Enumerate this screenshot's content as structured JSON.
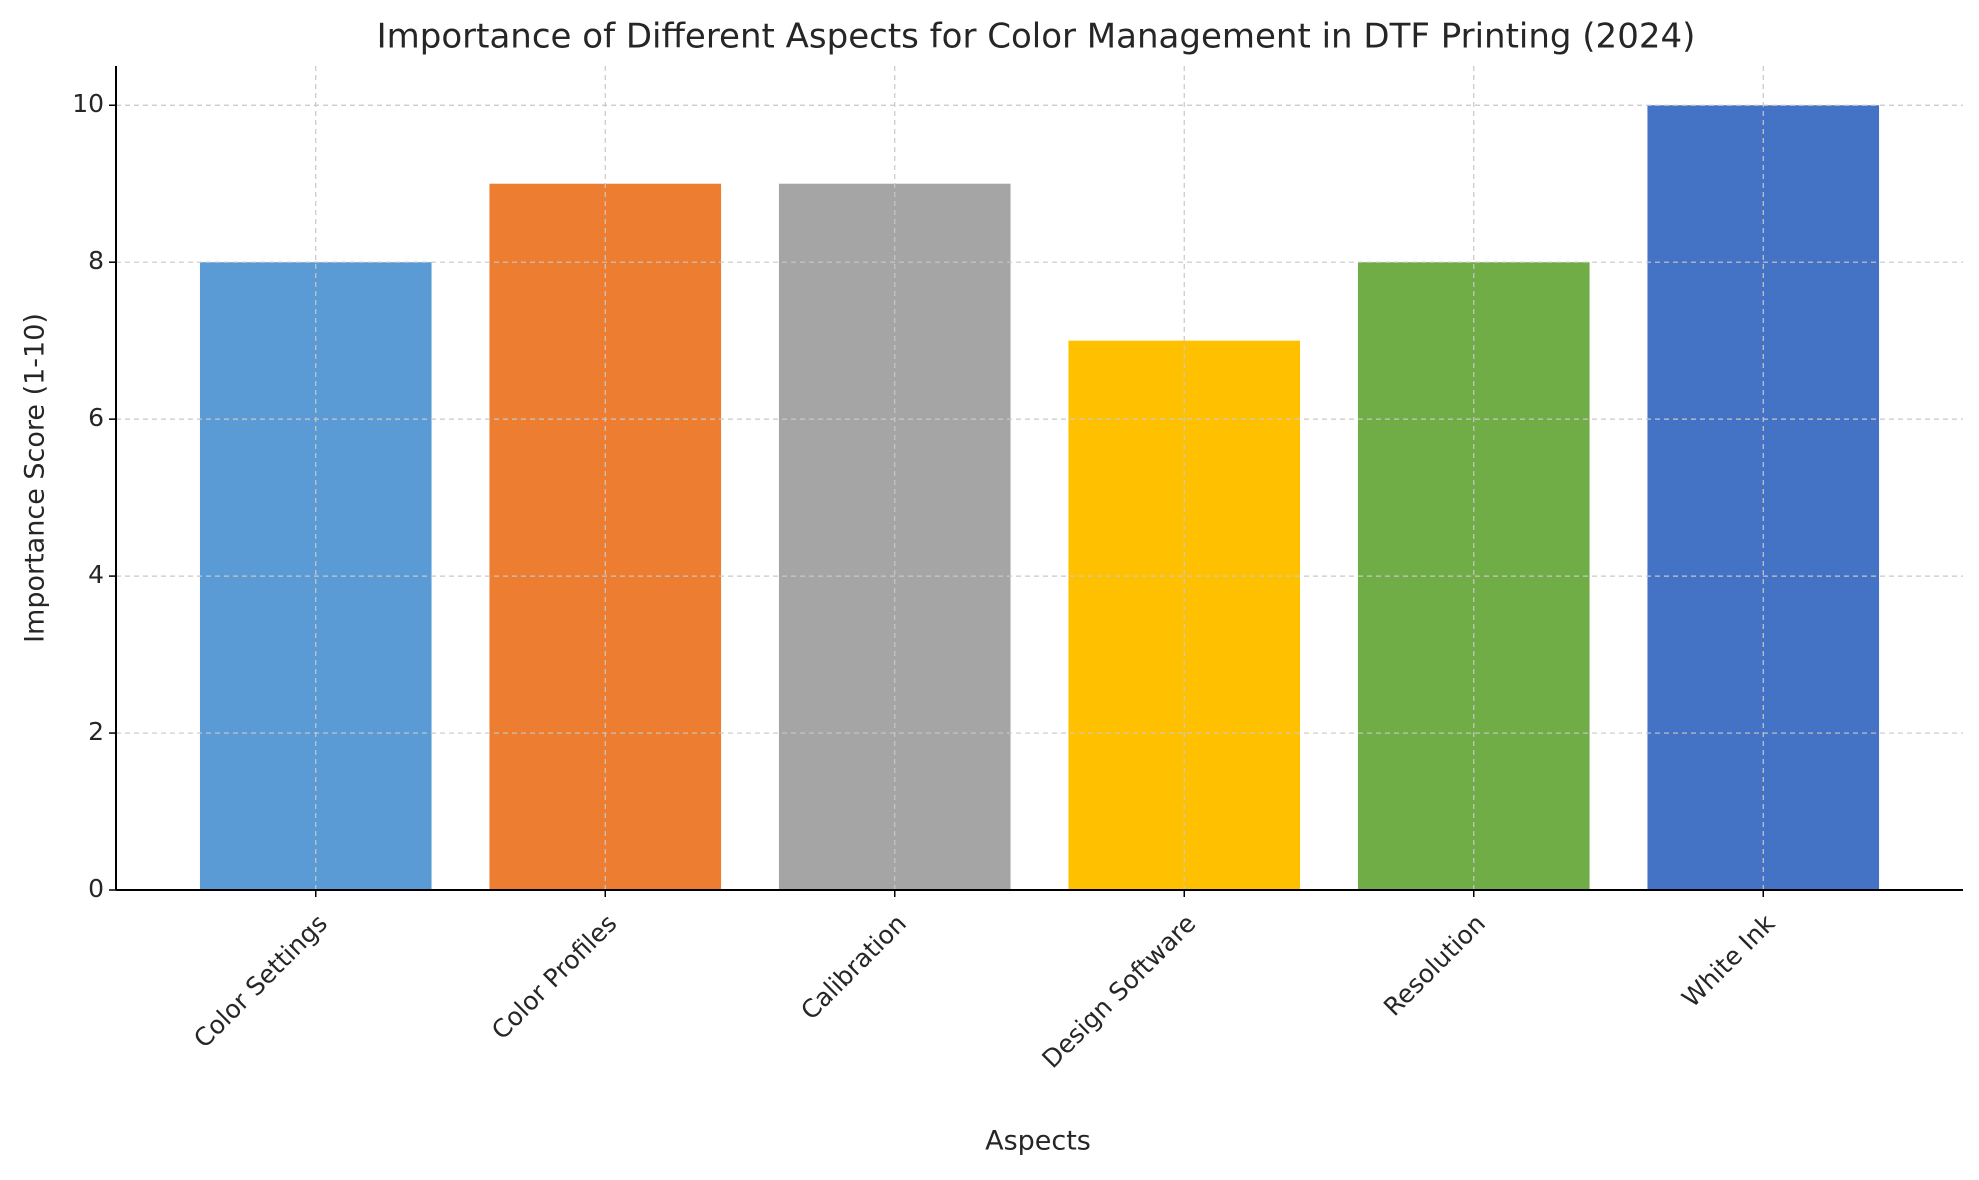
{
  "chart_data": {
    "type": "bar",
    "title": "Importance of Different Aspects for Color Management in DTF Printing (2024)",
    "x_label": "Aspects",
    "y_label": "Importance Score (1-10)",
    "categories": [
      "Color Settings",
      "Color Profiles",
      "Calibration",
      "Design Software",
      "Resolution",
      "White Ink"
    ],
    "values": [
      8,
      9,
      9,
      7,
      8,
      10
    ],
    "colors": [
      "#5b9bd5",
      "#ed7d31",
      "#a5a5a5",
      "#ffc000",
      "#70ad47",
      "#4472c4"
    ],
    "ylim": [
      0,
      10.5
    ],
    "yticks": [
      0,
      2,
      4,
      6,
      8,
      10
    ],
    "grid": true
  }
}
